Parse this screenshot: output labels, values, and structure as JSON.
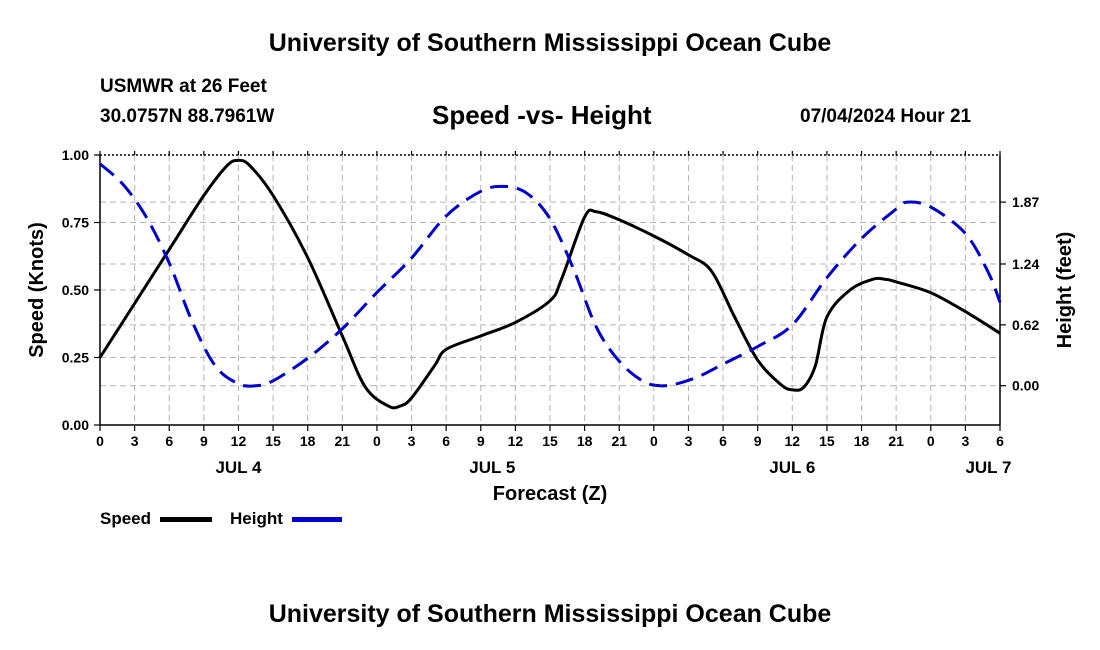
{
  "header": {
    "title": "University of Southern Mississippi Ocean Cube",
    "station": "USMWR at 26 Feet",
    "coords": "30.0757N  88.7961W",
    "date": "07/04/2024 Hour 21"
  },
  "footer": {
    "title": "University of Southern Mississippi Ocean Cube"
  },
  "legend": {
    "speed_label": "Speed",
    "height_label": "Height",
    "speed_color": "#000000",
    "height_color": "#0000cc"
  },
  "chart_data": {
    "type": "line",
    "title": "Speed -vs- Height",
    "xlabel": "Forecast (Z)",
    "ylabel": "Speed (Knots)",
    "y2label": "Height (feet)",
    "x_range_hours": [
      0,
      78
    ],
    "ylim": [
      0,
      1.0
    ],
    "y2lim": [
      -0.4,
      2.35
    ],
    "yticks": [
      {
        "v": 0,
        "label": "0.00"
      },
      {
        "v": 0.25,
        "label": "0.25"
      },
      {
        "v": 0.5,
        "label": "0.50"
      },
      {
        "v": 0.75,
        "label": "0.75"
      },
      {
        "v": 1.0,
        "label": "1.00"
      }
    ],
    "y2ticks": [
      {
        "v": 0.0,
        "label": "0.00"
      },
      {
        "v": 0.62,
        "label": "0.62"
      },
      {
        "v": 1.24,
        "label": "1.24"
      },
      {
        "v": 1.87,
        "label": "1.87"
      }
    ],
    "xticks": [
      {
        "h": 0,
        "label": "0"
      },
      {
        "h": 3,
        "label": "3"
      },
      {
        "h": 6,
        "label": "6"
      },
      {
        "h": 9,
        "label": "9"
      },
      {
        "h": 12,
        "label": "12"
      },
      {
        "h": 15,
        "label": "15"
      },
      {
        "h": 18,
        "label": "18"
      },
      {
        "h": 21,
        "label": "21"
      },
      {
        "h": 24,
        "label": "0"
      },
      {
        "h": 27,
        "label": "3"
      },
      {
        "h": 30,
        "label": "6"
      },
      {
        "h": 33,
        "label": "9"
      },
      {
        "h": 36,
        "label": "12"
      },
      {
        "h": 39,
        "label": "15"
      },
      {
        "h": 42,
        "label": "18"
      },
      {
        "h": 45,
        "label": "21"
      },
      {
        "h": 48,
        "label": "0"
      },
      {
        "h": 51,
        "label": "3"
      },
      {
        "h": 54,
        "label": "6"
      },
      {
        "h": 57,
        "label": "9"
      },
      {
        "h": 60,
        "label": "12"
      },
      {
        "h": 63,
        "label": "15"
      },
      {
        "h": 66,
        "label": "18"
      },
      {
        "h": 69,
        "label": "21"
      },
      {
        "h": 72,
        "label": "0"
      },
      {
        "h": 75,
        "label": "3"
      },
      {
        "h": 78,
        "label": "6"
      }
    ],
    "day_labels": [
      {
        "h": 12,
        "label": "JUL 4"
      },
      {
        "h": 34,
        "label": "JUL 5"
      },
      {
        "h": 60,
        "label": "JUL 6"
      },
      {
        "h": 77,
        "label": "JUL 7"
      }
    ],
    "series": [
      {
        "name": "Speed",
        "axis": "left",
        "style": "solid",
        "points": [
          [
            0,
            0.25
          ],
          [
            3,
            0.45
          ],
          [
            6,
            0.65
          ],
          [
            9,
            0.85
          ],
          [
            11,
            0.96
          ],
          [
            12,
            0.98
          ],
          [
            13,
            0.96
          ],
          [
            15,
            0.85
          ],
          [
            18,
            0.62
          ],
          [
            21,
            0.33
          ],
          [
            23,
            0.14
          ],
          [
            25,
            0.07
          ],
          [
            26,
            0.07
          ],
          [
            27,
            0.1
          ],
          [
            29,
            0.22
          ],
          [
            30,
            0.28
          ],
          [
            33,
            0.33
          ],
          [
            36,
            0.38
          ],
          [
            39,
            0.46
          ],
          [
            40,
            0.54
          ],
          [
            42,
            0.77
          ],
          [
            43,
            0.79
          ],
          [
            45,
            0.76
          ],
          [
            48,
            0.7
          ],
          [
            51,
            0.63
          ],
          [
            53,
            0.57
          ],
          [
            55,
            0.4
          ],
          [
            57,
            0.24
          ],
          [
            59,
            0.15
          ],
          [
            60,
            0.13
          ],
          [
            61,
            0.14
          ],
          [
            62,
            0.22
          ],
          [
            63,
            0.4
          ],
          [
            65,
            0.5
          ],
          [
            67,
            0.54
          ],
          [
            68,
            0.54
          ],
          [
            69,
            0.53
          ],
          [
            72,
            0.49
          ],
          [
            75,
            0.42
          ],
          [
            78,
            0.34
          ]
        ]
      },
      {
        "name": "Height",
        "axis": "right",
        "style": "dashed",
        "points": [
          [
            0,
            2.26
          ],
          [
            2,
            2.05
          ],
          [
            4,
            1.72
          ],
          [
            6,
            1.25
          ],
          [
            8,
            0.65
          ],
          [
            10,
            0.2
          ],
          [
            12,
            0.02
          ],
          [
            13.5,
            0.0
          ],
          [
            15,
            0.05
          ],
          [
            18,
            0.28
          ],
          [
            21,
            0.58
          ],
          [
            24,
            0.95
          ],
          [
            27,
            1.3
          ],
          [
            30,
            1.73
          ],
          [
            33,
            1.98
          ],
          [
            35,
            2.03
          ],
          [
            37,
            1.96
          ],
          [
            39,
            1.7
          ],
          [
            41,
            1.2
          ],
          [
            43,
            0.6
          ],
          [
            45,
            0.25
          ],
          [
            47,
            0.05
          ],
          [
            48.5,
            0.0
          ],
          [
            50,
            0.02
          ],
          [
            52,
            0.1
          ],
          [
            54,
            0.22
          ],
          [
            57,
            0.4
          ],
          [
            60,
            0.62
          ],
          [
            63,
            1.1
          ],
          [
            66,
            1.5
          ],
          [
            69,
            1.8
          ],
          [
            70,
            1.87
          ],
          [
            72,
            1.82
          ],
          [
            75,
            1.55
          ],
          [
            77,
            1.15
          ],
          [
            78,
            0.85
          ]
        ]
      }
    ]
  }
}
